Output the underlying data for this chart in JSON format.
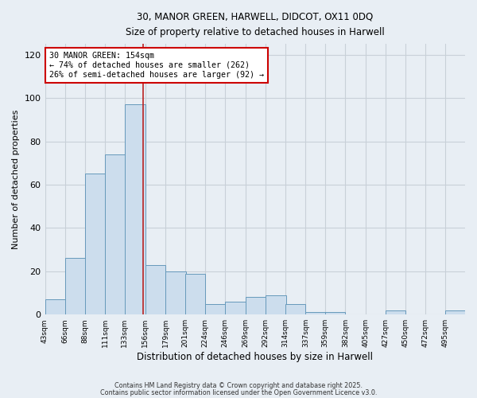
{
  "title_line1": "30, MANOR GREEN, HARWELL, DIDCOT, OX11 0DQ",
  "title_line2": "Size of property relative to detached houses in Harwell",
  "xlabel": "Distribution of detached houses by size in Harwell",
  "ylabel": "Number of detached properties",
  "bar_edges": [
    43,
    66,
    88,
    111,
    133,
    156,
    179,
    201,
    224,
    246,
    269,
    292,
    314,
    337,
    359,
    382,
    405,
    427,
    450,
    472,
    495
  ],
  "bar_heights": [
    7,
    26,
    65,
    74,
    97,
    23,
    20,
    19,
    5,
    6,
    8,
    9,
    5,
    1,
    1,
    0,
    0,
    2,
    0,
    0,
    2
  ],
  "bar_color": "#ccdded",
  "bar_edge_color": "#6699bb",
  "red_line_x": 154,
  "ylim": [
    0,
    125
  ],
  "yticks": [
    0,
    20,
    40,
    60,
    80,
    100,
    120
  ],
  "annotation_text": "30 MANOR GREEN: 154sqm\n← 74% of detached houses are smaller (262)\n26% of semi-detached houses are larger (92) →",
  "annotation_box_color": "#ffffff",
  "annotation_box_edge_color": "#cc0000",
  "background_color": "#e8eef4",
  "grid_color": "#c8d0d8",
  "footer_line1": "Contains HM Land Registry data © Crown copyright and database right 2025.",
  "footer_line2": "Contains public sector information licensed under the Open Government Licence v3.0."
}
